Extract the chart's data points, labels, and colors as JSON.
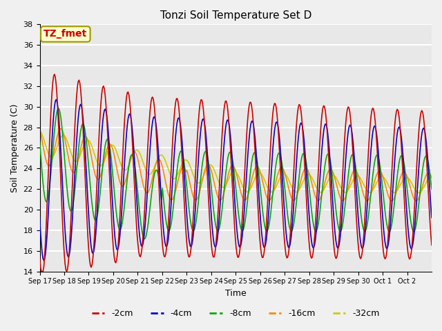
{
  "title": "Tonzi Soil Temperature Set D",
  "xlabel": "Time",
  "ylabel": "Soil Temperature (C)",
  "annotation": "TZ_fmet",
  "annotation_color": "#cc0000",
  "annotation_bg": "#ffffcc",
  "annotation_border": "#999900",
  "ylim": [
    14,
    38
  ],
  "yticks": [
    14,
    16,
    18,
    20,
    22,
    24,
    26,
    28,
    30,
    32,
    34,
    36,
    38
  ],
  "x_labels": [
    "Sep 17",
    "Sep 18",
    "Sep 19",
    "Sep 20",
    "Sep 21",
    "Sep 22",
    "Sep 23",
    "Sep 24",
    "Sep 25",
    "Sep 26",
    "Sep 27",
    "Sep 28",
    "Sep 29",
    "Sep 30",
    "Oct 1",
    "Oct 2"
  ],
  "x_tick_positions": [
    0,
    1,
    2,
    3,
    4,
    5,
    6,
    7,
    8,
    9,
    10,
    11,
    12,
    13,
    14,
    15
  ],
  "colors": {
    "-2cm": "#cc0000",
    "-4cm": "#0000cc",
    "-8cm": "#00aa00",
    "-16cm": "#ff8800",
    "-32cm": "#cccc00"
  },
  "series_labels": [
    "-2cm",
    "-4cm",
    "-8cm",
    "-16cm",
    "-32cm"
  ],
  "background_color": "#e8e8e8",
  "grid_color": "#ffffff",
  "n_points": 480
}
